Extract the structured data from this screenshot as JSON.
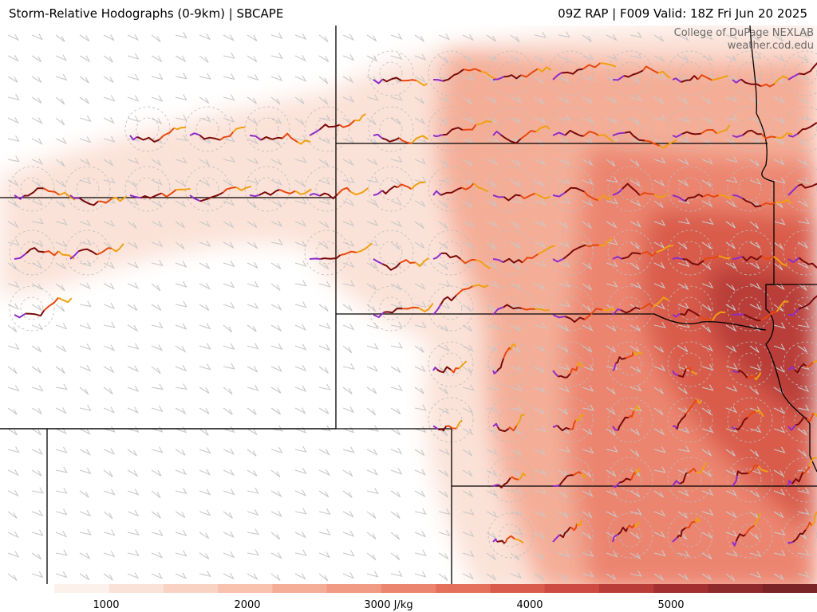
{
  "header": {
    "title_left": "Storm-Relative Hodographs (0-9km) | SBCAPE",
    "title_right": "09Z RAP | F009 Valid: 18Z Fri Jun 20 2025"
  },
  "credit": {
    "line1": "College of DuPage NEXLAB",
    "line2": "weather.cod.edu"
  },
  "colorbar": {
    "labels": [
      "1000",
      "2000",
      "3000 J/kg",
      "4000",
      "5000"
    ],
    "label_values": [
      1000,
      2000,
      3000,
      4000,
      5000
    ],
    "min": 500,
    "max": 5500,
    "units": "J/kg",
    "colors": [
      "#ffffff",
      "#fdf1ec",
      "#fbe2d8",
      "#f9d2c3",
      "#f7c1ae",
      "#f4ae98",
      "#f19a83",
      "#ec856f",
      "#e4705c",
      "#d95b4c",
      "#cc4a41",
      "#b93c39",
      "#a32f31",
      "#8e2a2c",
      "#7a2428"
    ]
  },
  "map_colors": {
    "background": "#ffffff",
    "borders": "#000000",
    "barbs": "#c8c8c8",
    "rings": "#bbbbbb",
    "hodo_segments": [
      "#8e2cc9",
      "#7a0a0a",
      "#e8470d",
      "#f0a010"
    ]
  }
}
